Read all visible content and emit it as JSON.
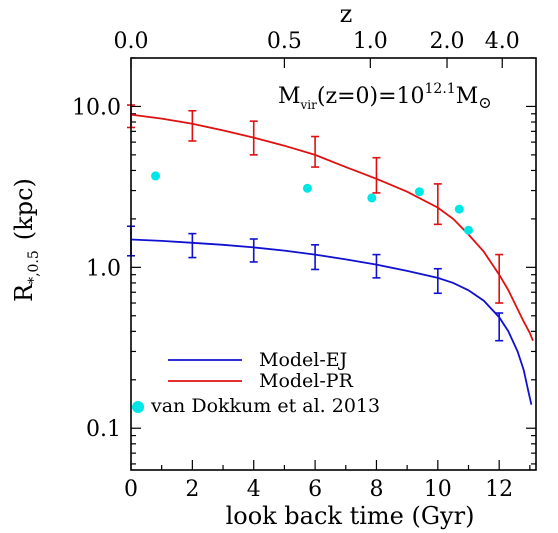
{
  "chart_data": {
    "type": "line",
    "xlabel": "look back time (Gyr)",
    "ylabel_main": "R",
    "ylabel_sub": "*,0.5",
    "ylabel_unit": "(kpc)",
    "top_axis_label": "z",
    "annotation": {
      "main": "M",
      "sub": "vir",
      "mid": "(z=0)=10",
      "sup": "12.1",
      "unit": "M",
      "sun": "⊙"
    },
    "xlim": [
      0,
      13.2
    ],
    "ylim_log": [
      0.055,
      20
    ],
    "y_scale": "log",
    "x_ticks": [
      "0",
      "2",
      "4",
      "6",
      "8",
      "10",
      "12"
    ],
    "y_ticks": [
      "0.1",
      "1.0",
      "10.0"
    ],
    "top_ticks": [
      {
        "label": "0.0",
        "x": 0
      },
      {
        "label": "0.5",
        "x": 5.0
      },
      {
        "label": "1.0",
        "x": 7.8
      },
      {
        "label": "2.0",
        "x": 10.3
      },
      {
        "label": "4.0",
        "x": 12.1
      }
    ],
    "series": [
      {
        "name": "Model-EJ",
        "color": "#1010d0",
        "x": [
          0,
          1,
          2,
          3,
          4,
          5,
          6,
          7,
          8,
          9,
          10,
          10.5,
          11,
          11.5,
          12,
          12.3,
          12.6,
          12.8,
          12.95,
          13.05
        ],
        "y": [
          1.49,
          1.46,
          1.42,
          1.38,
          1.33,
          1.27,
          1.2,
          1.12,
          1.04,
          0.95,
          0.86,
          0.8,
          0.72,
          0.62,
          0.49,
          0.4,
          0.3,
          0.23,
          0.17,
          0.14
        ],
        "err_x": [
          0,
          2,
          4,
          6,
          8,
          10,
          12
        ],
        "err_y": [
          1.49,
          1.38,
          1.28,
          1.15,
          1.02,
          0.82,
          0.43
        ],
        "err_lo": [
          1.18,
          1.15,
          1.08,
          0.97,
          0.86,
          0.69,
          0.35
        ],
        "err_hi": [
          1.8,
          1.62,
          1.5,
          1.38,
          1.2,
          0.98,
          0.52
        ]
      },
      {
        "name": "Model-PR",
        "color": "#e01010",
        "x": [
          0,
          1,
          2,
          3,
          4,
          5,
          6,
          7,
          8,
          9,
          10,
          10.5,
          11,
          11.5,
          12,
          12.3,
          12.6,
          12.8,
          13.0,
          13.1
        ],
        "y": [
          8.9,
          8.4,
          7.8,
          7.1,
          6.4,
          5.7,
          5.0,
          4.2,
          3.55,
          2.95,
          2.35,
          2.0,
          1.6,
          1.25,
          0.9,
          0.72,
          0.55,
          0.46,
          0.39,
          0.35
        ],
        "err_x": [
          0,
          2,
          4,
          6,
          8,
          10,
          12
        ],
        "err_y": [
          8.9,
          7.6,
          6.4,
          5.3,
          3.9,
          2.5,
          0.92
        ],
        "err_lo": [
          7.4,
          6.1,
          5.0,
          4.2,
          2.9,
          1.85,
          0.6
        ],
        "err_hi": [
          10.2,
          9.4,
          8.1,
          6.5,
          4.8,
          3.3,
          1.2
        ]
      },
      {
        "name": "van Dokkum et al. 2013",
        "color": "#00e5e5",
        "type": "scatter",
        "x": [
          0.8,
          5.75,
          7.85,
          9.4,
          10.7,
          11.0
        ],
        "y": [
          3.7,
          3.1,
          2.7,
          2.95,
          2.3,
          1.7
        ]
      }
    ],
    "legend": {
      "placement": "bottom-left",
      "entries": [
        "Model-EJ",
        "Model-PR",
        "van Dokkum et al. 2013"
      ]
    }
  }
}
